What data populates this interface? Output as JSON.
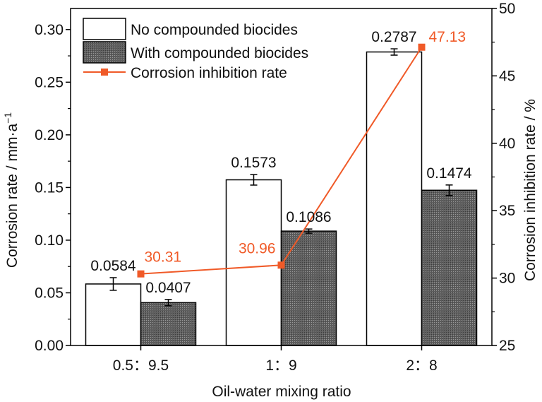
{
  "chart_data": {
    "type": "bar",
    "categories": [
      "0.5：9.5",
      "1：9",
      "2：8"
    ],
    "xlabel": "Oil-water mixing ratio",
    "ylabel": "Corrosion rate / mm·a",
    "ylabel_sup": "−1",
    "y2label": "Corrosion inhibition rate / %",
    "ylim": [
      0,
      0.32
    ],
    "y2lim": [
      25,
      50
    ],
    "yticks": [
      "0.00",
      "0.05",
      "0.10",
      "0.15",
      "0.20",
      "0.25",
      "0.30"
    ],
    "y2ticks": [
      "25",
      "30",
      "35",
      "40",
      "45",
      "50"
    ],
    "series": [
      {
        "name": "No compounded biocides",
        "kind": "bar",
        "values": [
          0.0584,
          0.1573,
          0.2787
        ],
        "labels": [
          "0.0584",
          "0.1573",
          "0.2787"
        ],
        "errors": [
          0.006,
          0.005,
          0.003
        ],
        "fill": "#ffffff"
      },
      {
        "name": "With compounded biocides",
        "kind": "bar",
        "values": [
          0.0407,
          0.1086,
          0.1474
        ],
        "labels": [
          "0.0407",
          "0.1086",
          "0.1474"
        ],
        "errors": [
          0.003,
          0.002,
          0.005
        ],
        "fill": "#666666"
      },
      {
        "name": "Corrosion inhibition rate",
        "kind": "line",
        "axis": "right",
        "values": [
          30.31,
          30.96,
          47.13
        ],
        "labels": [
          "30.31",
          "30.96",
          "47.13"
        ],
        "color": "#f05a28"
      }
    ],
    "legend_position": "top-left",
    "grid": false
  }
}
